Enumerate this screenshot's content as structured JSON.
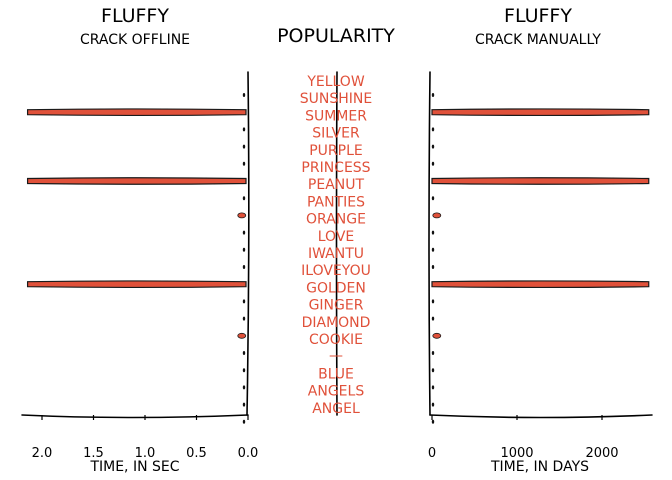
{
  "left_panel": {
    "title": "FLUFFY",
    "subtitle": "CRACK OFFLINE",
    "xlabel": "TIME, IN SEC",
    "ticks": [
      "2.0",
      "1.5",
      "1.0",
      "0.5",
      "0.0"
    ]
  },
  "middle_panel": {
    "title": "POPULARITY"
  },
  "right_panel": {
    "title": "FLUFFY",
    "subtitle": "CRACK MANUALLY",
    "xlabel": "TIME, IN DAYS",
    "ticks": [
      "0",
      "1000",
      "2000"
    ]
  },
  "colors": {
    "bar": "#e0513a",
    "text": "#e0513a",
    "ink": "#000000"
  },
  "chart_data": [
    {
      "type": "bar",
      "orientation": "horizontal",
      "direction": "reversed",
      "title": "FLUFFY",
      "subtitle": "CRACK OFFLINE",
      "xlabel": "TIME, IN SEC",
      "xlim": [
        2.15,
        0
      ],
      "categories": [
        "YELLOW",
        "SUNSHINE",
        "SUMMER",
        "SILVER",
        "PURPLE",
        "PRINCESS",
        "PEANUT",
        "PANTIES",
        "ORANGE",
        "LOVE",
        "IWANTU",
        "ILOVEYOU",
        "GOLDEN",
        "GINGER",
        "DIAMOND",
        "COOKIE",
        "",
        "BLUE",
        "ANGELS",
        "ANGEL"
      ],
      "values": [
        0,
        2.14,
        0,
        0,
        0,
        2.14,
        0,
        0.08,
        0,
        0,
        0,
        2.14,
        0,
        0,
        0.08,
        0,
        0,
        0,
        0,
        0
      ]
    },
    {
      "type": "bar",
      "orientation": "horizontal",
      "title": "FLUFFY",
      "subtitle": "CRACK MANUALLY",
      "xlabel": "TIME, IN DAYS",
      "xlim": [
        0,
        2600
      ],
      "categories": [
        "YELLOW",
        "SUNSHINE",
        "SUMMER",
        "SILVER",
        "PURPLE",
        "PRINCESS",
        "PEANUT",
        "PANTIES",
        "ORANGE",
        "LOVE",
        "IWANTU",
        "ILOVEYOU",
        "GOLDEN",
        "GINGER",
        "DIAMOND",
        "COOKIE",
        "",
        "BLUE",
        "ANGELS",
        "ANGEL"
      ],
      "values": [
        0,
        2550,
        0,
        0,
        0,
        2550,
        0,
        80,
        0,
        0,
        0,
        2550,
        0,
        0,
        80,
        0,
        0,
        0,
        0,
        0
      ]
    }
  ]
}
